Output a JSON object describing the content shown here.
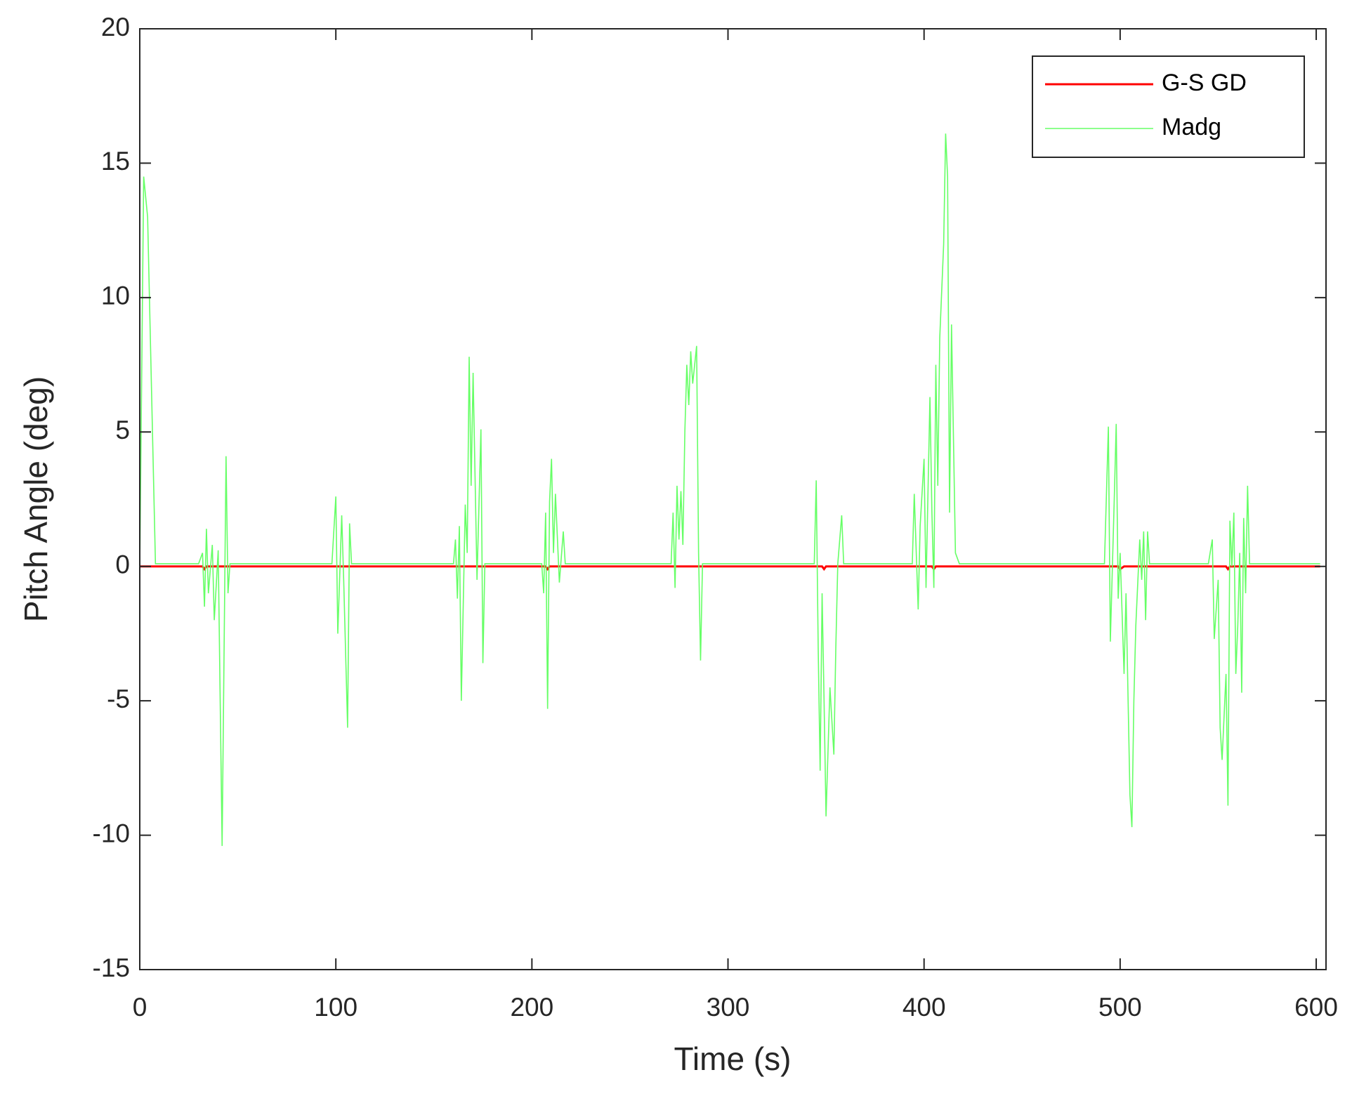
{
  "chart_data": {
    "type": "line",
    "xlabel": "Time (s)",
    "ylabel": "Pitch Angle (deg)",
    "xlim": [
      0,
      605
    ],
    "ylim": [
      -15,
      20
    ],
    "xticks": [
      0,
      100,
      200,
      300,
      400,
      500,
      600
    ],
    "yticks": [
      -15,
      -10,
      -5,
      0,
      5,
      10,
      15,
      20
    ],
    "legend_position": "upper right",
    "grid": false,
    "x": [
      0,
      2,
      4,
      8,
      30,
      32,
      33,
      34,
      35,
      37,
      38,
      40,
      42,
      44,
      45,
      46,
      98,
      100,
      101,
      103,
      104,
      106,
      107,
      108,
      160,
      161,
      162,
      163,
      164,
      166,
      167,
      168,
      169,
      170,
      172,
      174,
      175,
      176,
      205,
      206,
      207,
      208,
      209,
      210,
      211,
      212,
      214,
      216,
      217,
      271,
      272,
      273,
      274,
      275,
      276,
      277,
      278,
      279,
      280,
      281,
      282,
      284,
      285,
      286,
      287,
      344,
      345,
      346,
      347,
      348,
      349,
      350,
      352,
      354,
      355,
      356,
      358,
      359,
      394,
      395,
      397,
      398,
      400,
      401,
      403,
      404,
      405,
      406,
      407,
      408,
      410,
      411,
      412,
      413,
      414,
      416,
      418,
      492,
      494,
      495,
      497,
      498,
      499,
      500,
      502,
      503,
      505,
      506,
      507,
      508,
      510,
      511,
      512,
      513,
      514,
      515,
      545,
      547,
      548,
      550,
      551,
      552,
      554,
      555,
      556,
      557,
      558,
      559,
      560,
      561,
      562,
      563,
      564,
      565,
      566,
      602
    ],
    "series": [
      {
        "name": "G-S GD",
        "color": "#ff0000",
        "values": [
          0,
          0,
          0,
          0,
          0,
          0,
          -0.1,
          0,
          0,
          0,
          0,
          0,
          0,
          0,
          0,
          0,
          0,
          0,
          0,
          0,
          0,
          0,
          0,
          0,
          0,
          0,
          0,
          0,
          0,
          0,
          0,
          0,
          0,
          0,
          0,
          0,
          0,
          0,
          0,
          0,
          0,
          -0.1,
          0,
          0,
          0,
          0,
          0,
          0,
          0,
          0,
          0,
          0,
          0,
          0,
          0,
          0,
          0,
          0,
          0,
          0,
          0,
          0,
          0,
          0,
          0,
          0,
          0,
          0,
          0,
          0,
          -0.1,
          0,
          0,
          0,
          0,
          0,
          0,
          0,
          0,
          0,
          0,
          0,
          0,
          0,
          0,
          0,
          -0.1,
          0,
          0,
          0,
          0,
          0,
          0,
          0,
          0,
          0,
          0,
          0,
          0,
          0,
          0,
          0,
          0,
          -0.1,
          0,
          0,
          0,
          0,
          0,
          0,
          0,
          0,
          0,
          0,
          0,
          0,
          0,
          0,
          0,
          0,
          0,
          0,
          0,
          -0.1,
          0,
          0,
          0,
          0,
          0,
          0,
          0,
          0,
          0,
          0,
          0,
          0
        ]
      },
      {
        "name": "Madg",
        "color": "#66ff66",
        "values": [
          0,
          14.5,
          13,
          0.1,
          0.1,
          0.5,
          -1.5,
          1.4,
          -1,
          0.8,
          -2,
          0.6,
          -10.4,
          4.1,
          -1,
          0.1,
          0.1,
          2.6,
          -2.5,
          1.9,
          -0.5,
          -6,
          1.6,
          0.1,
          0.1,
          1,
          -1.2,
          1.5,
          -5,
          2.3,
          0.5,
          7.8,
          3,
          7.2,
          -0.5,
          5.1,
          -3.6,
          0.1,
          0.1,
          -1,
          2,
          -5.3,
          2.4,
          4,
          0.5,
          2.7,
          -0.6,
          1.3,
          0.1,
          0.1,
          2,
          -0.8,
          3,
          1,
          2.8,
          0.8,
          5,
          7.5,
          6,
          8,
          6.8,
          8.2,
          0.5,
          -3.5,
          0.1,
          0.1,
          3.2,
          -3,
          -7.6,
          -1,
          -5,
          -9.3,
          -4.5,
          -7,
          -3,
          0.1,
          1.9,
          0.1,
          0.1,
          2.7,
          -1.6,
          1.5,
          4,
          -0.8,
          6.3,
          2,
          -0.8,
          7.5,
          3,
          8.5,
          12,
          16.1,
          14.5,
          2,
          9,
          0.5,
          0.1,
          0.1,
          5.2,
          -2.8,
          2.5,
          5.3,
          -1.2,
          0.5,
          -4,
          -1,
          -8.5,
          -9.7,
          -5,
          -2.2,
          1,
          -0.5,
          1.3,
          -2,
          1.3,
          0.1,
          0.1,
          1,
          -2.7,
          -0.5,
          -6,
          -7.2,
          -4,
          -8.9,
          1.7,
          0,
          2,
          -4,
          -2.2,
          0.5,
          -4.7,
          1.8,
          -1,
          3,
          0.1,
          0.1
        ]
      }
    ]
  }
}
